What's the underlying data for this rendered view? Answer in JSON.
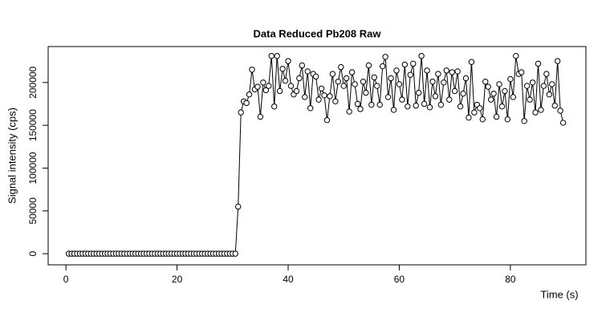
{
  "chart_data": {
    "type": "line",
    "title": "Data Reduced Pb208 Raw",
    "xlabel": "Time (s)",
    "ylabel": "Signal intensity (cps)",
    "markers": "open-circle",
    "color": "#000000",
    "x": [
      0.5,
      1,
      1.5,
      2,
      2.5,
      3,
      3.5,
      4,
      4.5,
      5,
      5.5,
      6,
      6.5,
      7,
      7.5,
      8,
      8.5,
      9,
      9.5,
      10,
      10.5,
      11,
      11.5,
      12,
      12.5,
      13,
      13.5,
      14,
      14.5,
      15,
      15.5,
      16,
      16.5,
      17,
      17.5,
      18,
      18.5,
      19,
      19.5,
      20,
      20.5,
      21,
      21.5,
      22,
      22.5,
      23,
      23.5,
      24,
      24.5,
      25,
      25.5,
      26,
      26.5,
      27,
      27.5,
      28,
      28.5,
      29,
      29.5,
      30,
      30.5,
      31,
      31.5,
      32,
      32.5,
      33,
      33.5,
      34,
      34.5,
      35,
      35.5,
      36,
      36.5,
      37,
      37.5,
      38,
      38.5,
      39,
      39.5,
      40,
      40.5,
      41,
      41.5,
      42,
      42.5,
      43,
      43.5,
      44,
      44.5,
      45,
      45.5,
      46,
      46.5,
      47,
      47.5,
      48,
      48.5,
      49,
      49.5,
      50,
      50.5,
      51,
      51.5,
      52,
      52.5,
      53,
      53.5,
      54,
      54.5,
      55,
      55.5,
      56,
      56.5,
      57,
      57.5,
      58,
      58.5,
      59,
      59.5,
      60,
      60.5,
      61,
      61.5,
      62,
      62.5,
      63,
      63.5,
      64,
      64.5,
      65,
      65.5,
      66,
      66.5,
      67,
      67.5,
      68,
      68.5,
      69,
      69.5,
      70,
      70.5,
      71,
      71.5,
      72,
      72.5,
      73,
      73.5,
      74,
      74.5,
      75,
      75.5,
      76,
      76.5,
      77,
      77.5,
      78,
      78.5,
      79,
      79.5,
      80,
      80.5,
      81,
      81.5,
      82,
      82.5,
      83,
      83.5,
      84,
      84.5,
      85,
      85.5,
      86,
      86.5,
      87,
      87.5,
      88,
      88.5,
      89,
      89.5
    ],
    "values": [
      0,
      0,
      0,
      0,
      0,
      0,
      0,
      0,
      0,
      0,
      0,
      0,
      0,
      0,
      0,
      0,
      0,
      0,
      0,
      0,
      0,
      0,
      0,
      0,
      0,
      0,
      0,
      0,
      0,
      0,
      0,
      0,
      0,
      0,
      0,
      0,
      0,
      0,
      0,
      0,
      0,
      0,
      0,
      0,
      0,
      0,
      0,
      0,
      0,
      0,
      0,
      0,
      0,
      0,
      0,
      0,
      0,
      0,
      0,
      0,
      0,
      55000,
      165000,
      178000,
      176000,
      186000,
      215000,
      192000,
      195000,
      160000,
      200000,
      191000,
      196000,
      231000,
      172000,
      231000,
      190000,
      216000,
      202000,
      225000,
      196000,
      186000,
      190000,
      205000,
      220000,
      183000,
      213000,
      170000,
      210000,
      207000,
      180000,
      193000,
      185000,
      156000,
      184000,
      210000,
      178000,
      201000,
      218000,
      196000,
      205000,
      166000,
      212000,
      198000,
      175000,
      169000,
      201000,
      188000,
      220000,
      174000,
      206000,
      196000,
      174000,
      219000,
      230000,
      183000,
      205000,
      168000,
      214000,
      198000,
      180000,
      221000,
      172000,
      209000,
      222000,
      173000,
      188000,
      231000,
      175000,
      214000,
      171000,
      201000,
      184000,
      210000,
      174000,
      200000,
      214000,
      180000,
      212000,
      190000,
      213000,
      172000,
      187000,
      205000,
      159000,
      224000,
      165000,
      174000,
      170000,
      157000,
      201000,
      195000,
      180000,
      187000,
      160000,
      198000,
      172000,
      190000,
      157000,
      204000,
      183000,
      231000,
      210000,
      212000,
      155000,
      196000,
      180000,
      200000,
      165000,
      222000,
      168000,
      196000,
      210000,
      186000,
      198000,
      173000,
      225000,
      167000,
      153000
    ],
    "xlim": [
      -3.2,
      93.6
    ],
    "ylim": [
      -13000,
      242000
    ],
    "xticks": [
      0,
      20,
      40,
      60,
      80
    ],
    "yticks": [
      0,
      50000,
      100000,
      150000,
      200000
    ]
  }
}
